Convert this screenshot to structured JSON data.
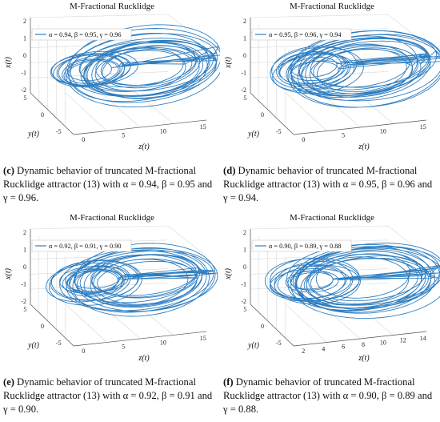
{
  "figure": {
    "panels": [
      {
        "id": "c",
        "title": "M-Fractional Rucklidge",
        "legend": "α = 0.94, β = 0.95, γ = 0.96",
        "caption": {
          "label": "(c)",
          "text": "Dynamic behavior of truncated M-fractional Rucklidge attractor (13) with α = 0.94, β = 0.95 and γ = 0.96."
        }
      },
      {
        "id": "d",
        "title": "M-Fractional Rucklidge",
        "legend": "α = 0.95, β = 0.96, γ = 0.94",
        "caption": {
          "label": "(d)",
          "text": "Dynamic behavior of truncated M-fractional Rucklidge attractor (13) with α = 0.95, β = 0.96 and γ = 0.94."
        }
      },
      {
        "id": "e",
        "title": "M-Fractional Rucklidge",
        "legend": "α = 0.92, β = 0.91, γ = 0.90",
        "caption": {
          "label": "(e)",
          "text": "Dynamic behavior of truncated M-fractional Rucklidge attractor (13) with α = 0.92, β = 0.91 and γ = 0.90."
        }
      },
      {
        "id": "f",
        "title": "M-Fractional Rucklidge",
        "legend": "α = 0.90, β = 0.89, γ = 0.88",
        "caption": {
          "label": "(f)",
          "text": "Dynamic behavior of truncated M-fractional Rucklidge attractor (13) with α = 0.90, β = 0.89 and γ = 0.88."
        }
      }
    ]
  },
  "chart_data": [
    {
      "type": "line3d",
      "title": "M-Fractional Rucklidge",
      "series": [
        {
          "name": "α = 0.94, β = 0.95, γ = 0.96",
          "color": "#2f7ec1"
        }
      ],
      "xlabel": "z(t)",
      "ylabel": "y(t)",
      "zlabel": "x(t)",
      "z_ticks": [
        0,
        5,
        10,
        15
      ],
      "y_ticks": [
        5,
        0,
        -5
      ],
      "x_ticks": [
        2,
        1,
        0,
        -1,
        -2
      ],
      "grid": true,
      "legend_position": "top-left"
    },
    {
      "type": "line3d",
      "title": "M-Fractional Rucklidge",
      "series": [
        {
          "name": "α = 0.95, β = 0.96, γ = 0.94",
          "color": "#2f7ec1"
        }
      ],
      "xlabel": "z(t)",
      "ylabel": "y(t)",
      "zlabel": "x(t)",
      "z_ticks": [
        0,
        5,
        10,
        15
      ],
      "y_ticks": [
        5,
        0,
        -5
      ],
      "x_ticks": [
        2,
        1,
        0,
        -1,
        -2
      ],
      "grid": true,
      "legend_position": "top-left"
    },
    {
      "type": "line3d",
      "title": "M-Fractional Rucklidge",
      "series": [
        {
          "name": "α = 0.92, β = 0.91, γ = 0.90",
          "color": "#2f7ec1"
        }
      ],
      "xlabel": "z(t)",
      "ylabel": "y(t)",
      "zlabel": "x(t)",
      "z_ticks": [
        0,
        5,
        10,
        15
      ],
      "y_ticks": [
        5,
        0,
        -5
      ],
      "x_ticks": [
        2,
        1,
        0,
        -1,
        -2
      ],
      "grid": true,
      "legend_position": "top-left"
    },
    {
      "type": "line3d",
      "title": "M-Fractional Rucklidge",
      "series": [
        {
          "name": "α = 0.90, β = 0.89, γ = 0.88",
          "color": "#2f7ec1"
        }
      ],
      "xlabel": "z(t)",
      "ylabel": "y(t)",
      "zlabel": "x(t)",
      "z_ticks": [
        2,
        4,
        6,
        8,
        10,
        12,
        14
      ],
      "y_ticks": [
        5,
        0,
        -5
      ],
      "x_ticks": [
        2,
        1,
        0,
        -1,
        -2
      ],
      "grid": true,
      "legend_position": "top-left"
    }
  ]
}
